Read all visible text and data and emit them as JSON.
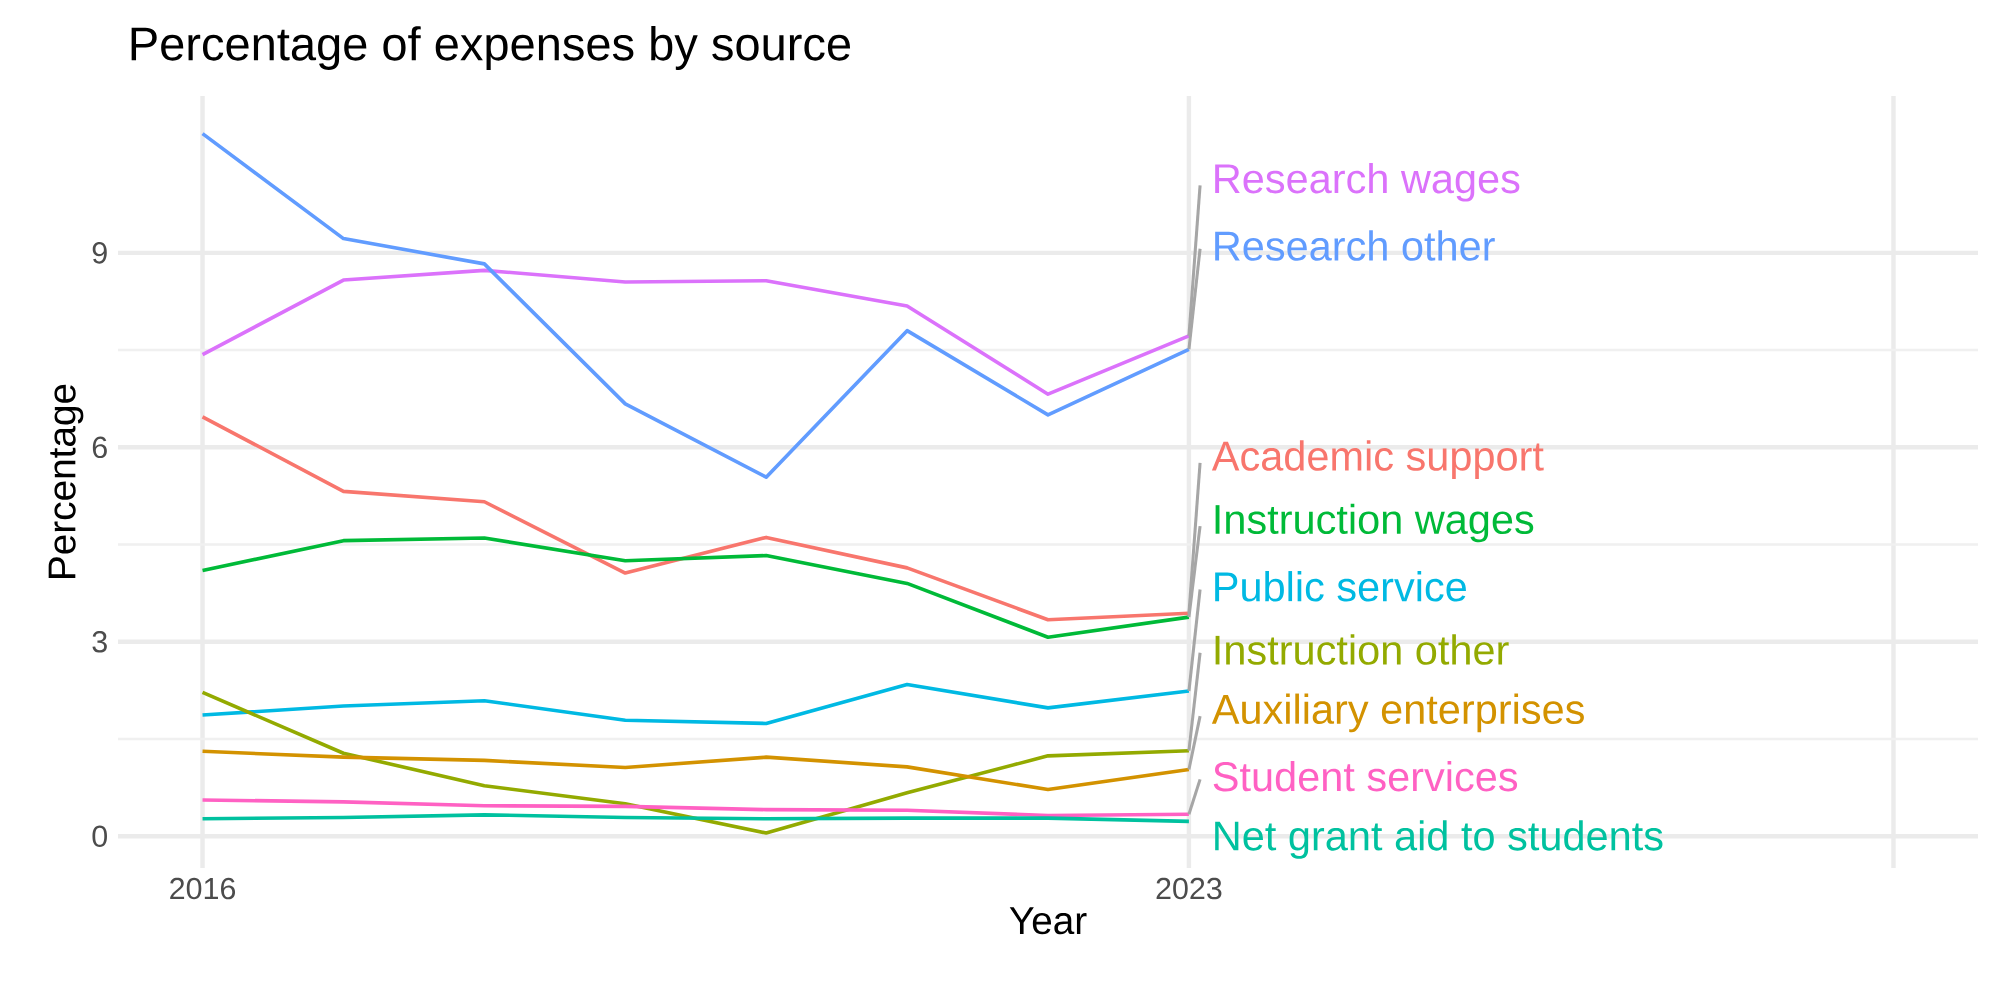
{
  "chart_data": {
    "type": "line",
    "title": "Percentage of expenses by source",
    "xlabel": "Year",
    "ylabel": "Percentage",
    "x": [
      2016,
      2017,
      2018,
      2019,
      2020,
      2021,
      2022,
      2023
    ],
    "xlim": [
      2015.4,
      2028.6
    ],
    "xticks": [
      2016,
      2023,
      {
        "value": 2028,
        "label": null
      }
    ],
    "ylim": [
      -0.49,
      11.42
    ],
    "yticks": [
      0,
      3,
      6,
      9
    ],
    "grid": true,
    "series": [
      {
        "name": "Research wages",
        "color": "#db72fb",
        "values": [
          7.43,
          8.58,
          8.73,
          8.55,
          8.57,
          8.18,
          6.82,
          7.72
        ]
      },
      {
        "name": "Research other",
        "color": "#619cff",
        "values": [
          10.84,
          9.22,
          8.83,
          6.67,
          5.54,
          7.8,
          6.5,
          7.51
        ]
      },
      {
        "name": "Academic support",
        "color": "#f8766d",
        "values": [
          6.47,
          5.32,
          5.16,
          4.06,
          4.61,
          4.14,
          3.34,
          3.44
        ]
      },
      {
        "name": "Instruction wages",
        "color": "#00ba38",
        "values": [
          4.1,
          4.56,
          4.6,
          4.25,
          4.33,
          3.9,
          3.07,
          3.38
        ]
      },
      {
        "name": "Public service",
        "color": "#00b9e3",
        "values": [
          1.87,
          2.01,
          2.09,
          1.79,
          1.74,
          2.34,
          1.98,
          2.24
        ]
      },
      {
        "name": "Instruction other",
        "color": "#93aa00",
        "values": [
          2.22,
          1.28,
          0.78,
          0.5,
          0.05,
          0.67,
          1.24,
          1.32
        ]
      },
      {
        "name": "Auxiliary enterprises",
        "color": "#d39200",
        "values": [
          1.31,
          1.22,
          1.17,
          1.06,
          1.22,
          1.07,
          0.72,
          1.03
        ]
      },
      {
        "name": "Student services",
        "color": "#ff61c3",
        "values": [
          0.56,
          0.53,
          0.47,
          0.46,
          0.41,
          0.4,
          0.32,
          0.34
        ]
      },
      {
        "name": "Net grant aid to students",
        "color": "#00c19f",
        "values": [
          0.27,
          0.29,
          0.33,
          0.29,
          0.27,
          0.28,
          0.28,
          0.23
        ]
      }
    ]
  }
}
